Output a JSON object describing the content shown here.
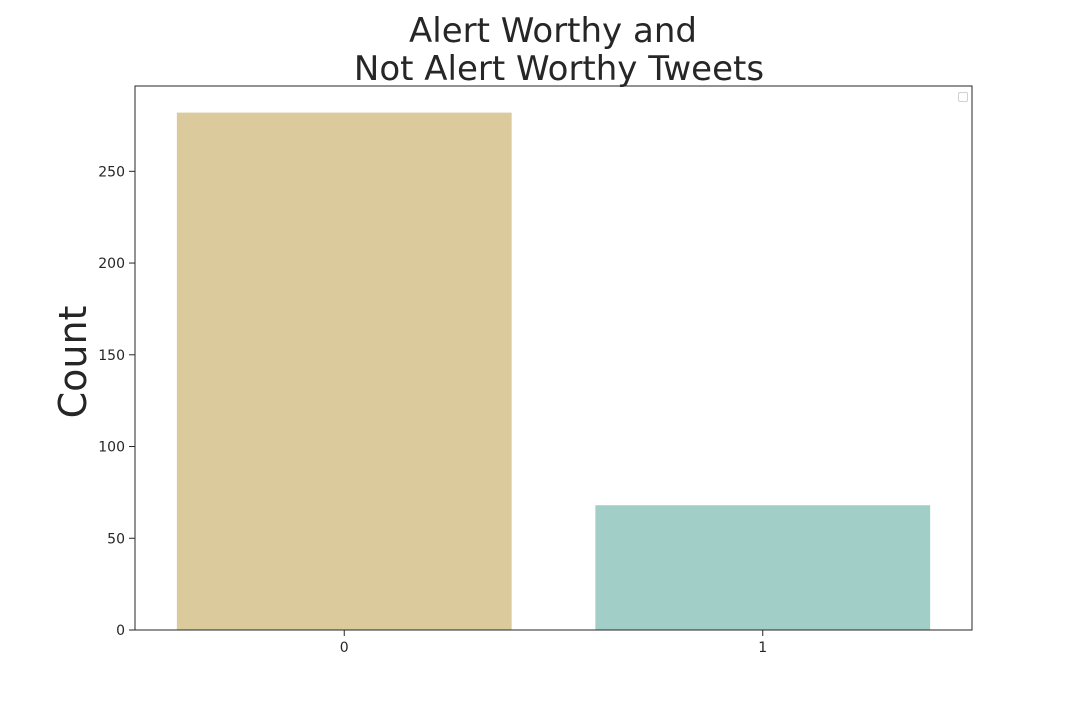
{
  "chart_data": {
    "type": "bar",
    "title_lines": [
      "Alert Worthy and",
      "Not Alert Worthy Tweets"
    ],
    "xlabel": "",
    "ylabel": "Count",
    "categories": [
      "0",
      "1"
    ],
    "values": [
      282,
      68
    ],
    "colors": [
      "#dbca9c",
      "#a2cec8"
    ],
    "ylim": [
      0,
      296.5
    ],
    "yticks": [
      0,
      50,
      100,
      150,
      200,
      250
    ],
    "ytick_labels": [
      "0",
      "50",
      "100",
      "150",
      "200",
      "250"
    ],
    "grid": false,
    "legend": {
      "position": "top-right",
      "entries": []
    }
  }
}
